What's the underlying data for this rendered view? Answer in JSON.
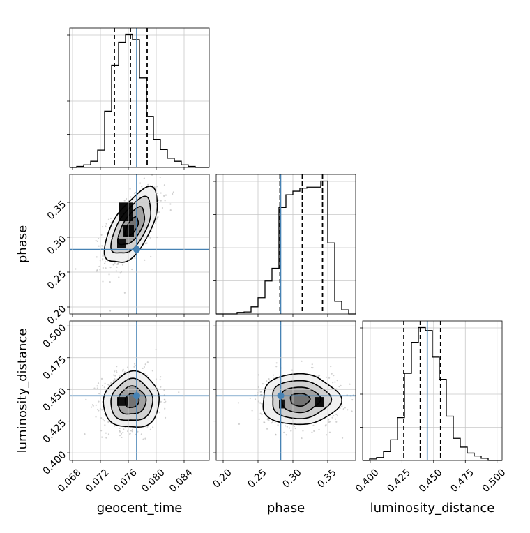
{
  "chart_data": {
    "type": "corner",
    "parameters": [
      "geocent_time",
      "phase",
      "luminosity_distance"
    ],
    "truths": [
      0.0772,
      0.2825,
      0.445
    ],
    "truth_color": "#4682b4",
    "axis_ranges": {
      "geocent_time": [
        0.0676,
        0.0876
      ],
      "phase": [
        0.19,
        0.39
      ],
      "luminosity_distance": [
        0.394,
        0.504
      ]
    },
    "ticks": {
      "geocent_time": [
        "0.068",
        "0.072",
        "0.076",
        "0.080",
        "0.084"
      ],
      "phase": [
        "0.20",
        "0.25",
        "0.30",
        "0.35"
      ],
      "luminosity_distance": [
        "0.400",
        "0.425",
        "0.450",
        "0.475",
        "0.500"
      ]
    },
    "quantiles": {
      "geocent_time": [
        0.074,
        0.0763,
        0.0787
      ],
      "phase": [
        0.2815,
        0.3135,
        0.3425
      ],
      "luminosity_distance": [
        0.4265,
        0.4395,
        0.4555
      ]
    },
    "hist1d": [
      {
        "param": "geocent_time",
        "edges": [
          0.0676,
          0.0686,
          0.0696,
          0.0706,
          0.0716,
          0.0726,
          0.0736,
          0.0746,
          0.0756,
          0.0766,
          0.0776,
          0.0786,
          0.0796,
          0.0806,
          0.0816,
          0.0826,
          0.0836,
          0.0846,
          0.0856,
          0.0866,
          0.0876
        ],
        "counts": [
          0,
          2,
          5,
          12,
          34,
          110,
          200,
          245,
          260,
          250,
          175,
          100,
          55,
          35,
          18,
          12,
          5,
          2,
          0,
          0
        ]
      },
      {
        "param": "phase",
        "edges": [
          0.19,
          0.2,
          0.21,
          0.22,
          0.23,
          0.24,
          0.25,
          0.26,
          0.27,
          0.28,
          0.29,
          0.3,
          0.31,
          0.32,
          0.33,
          0.34,
          0.35,
          0.36,
          0.37,
          0.38,
          0.39
        ],
        "counts": [
          0,
          0,
          0,
          3,
          4,
          14,
          32,
          65,
          90,
          210,
          235,
          242,
          248,
          250,
          250,
          262,
          140,
          25,
          8,
          0
        ]
      },
      {
        "param": "luminosity_distance",
        "edges": [
          0.394,
          0.3995,
          0.405,
          0.4105,
          0.416,
          0.4215,
          0.427,
          0.4325,
          0.438,
          0.4435,
          0.449,
          0.4545,
          0.46,
          0.4655,
          0.471,
          0.4765,
          0.482,
          0.4875,
          0.493,
          0.4985,
          0.504
        ],
        "counts": [
          0,
          2,
          4,
          12,
          28,
          58,
          118,
          160,
          180,
          176,
          140,
          110,
          60,
          30,
          18,
          10,
          6,
          3,
          0,
          0
        ]
      }
    ],
    "contours": [
      {
        "x": "geocent_time",
        "y": "phase",
        "center": [
          0.0765,
          0.315
        ],
        "sigma": [
          0.0019,
          0.027
        ],
        "corr": 0.62,
        "levels": [
          0.5,
          1.0,
          1.5,
          2.0
        ],
        "blobs": [
          {
            "x": [
              0.0746,
              0.0766
            ],
            "y": [
              0.323,
              0.35
            ],
            "value": 0.95
          },
          {
            "x": [
              0.0752,
              0.0768
            ],
            "y": [
              0.3,
              0.318
            ],
            "value": 1.0
          },
          {
            "x": [
              0.0744,
              0.0756
            ],
            "y": [
              0.285,
              0.297
            ],
            "value": 0.85
          }
        ]
      },
      {
        "x": "geocent_time",
        "y": "luminosity_distance",
        "center": [
          0.0765,
          0.441
        ],
        "sigma": [
          0.002,
          0.011
        ],
        "corr": 0.05,
        "levels": [
          0.5,
          1.0,
          1.5,
          2.0
        ],
        "blobs": [
          {
            "x": [
              0.0744,
              0.076
            ],
            "y": [
              0.437,
              0.444
            ],
            "value": 0.9
          }
        ]
      },
      {
        "x": "phase",
        "y": "luminosity_distance",
        "center": [
          0.31,
          0.442
        ],
        "sigma": [
          0.028,
          0.01
        ],
        "corr": 0.0,
        "levels": [
          0.5,
          1.0,
          1.5,
          2.0
        ],
        "blobs": [
          {
            "x": [
              0.331,
              0.345
            ],
            "y": [
              0.436,
              0.444
            ],
            "value": 0.95
          },
          {
            "x": [
              0.28,
              0.288
            ],
            "y": [
              0.435,
              0.442
            ],
            "value": 0.8
          }
        ]
      }
    ]
  }
}
